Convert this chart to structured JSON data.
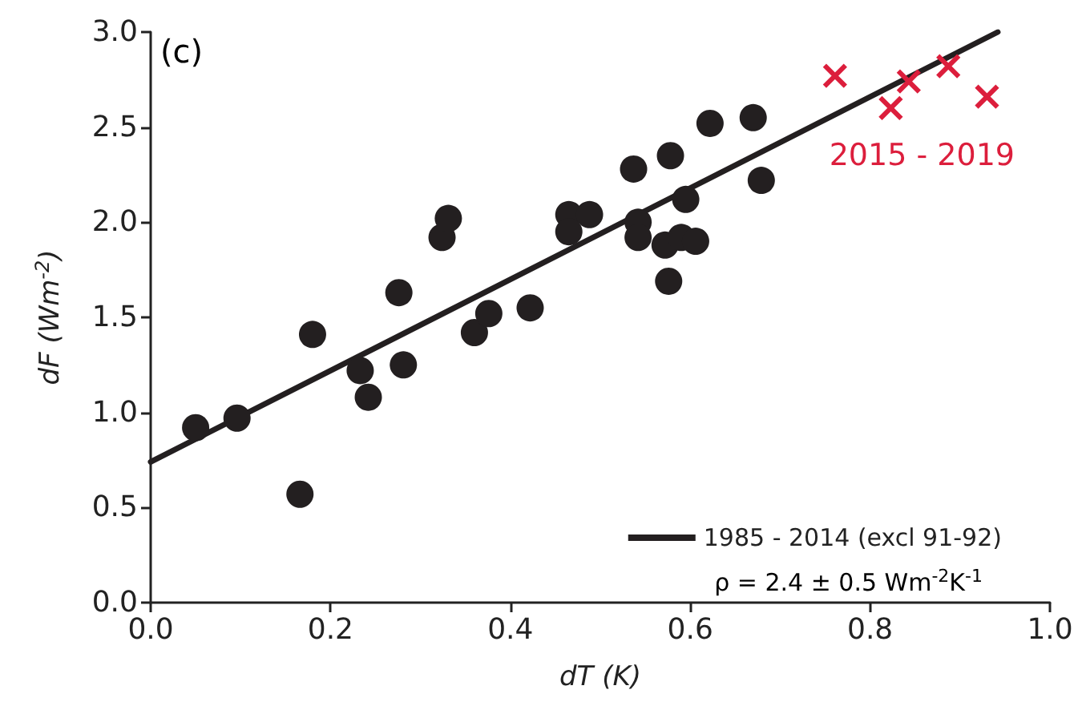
{
  "chart_data": {
    "type": "scatter",
    "xlabel": "dT (K)",
    "ylabel": "dF (Wm$^{-2}$)",
    "xlim": [
      0,
      1.0
    ],
    "xticks": [
      {
        "value": 0,
        "label": "0.0"
      },
      0.2,
      0.4,
      0.6,
      0.8,
      {
        "value": 1,
        "label": "1.0"
      }
    ],
    "ylim": [
      0,
      3.0
    ],
    "yticks": [
      {
        "value": 0,
        "label": "0.0"
      },
      0.5,
      {
        "value": 1,
        "label": "1.0"
      },
      1.5,
      {
        "value": 2,
        "label": "2.0"
      },
      2.5,
      {
        "value": 3,
        "label": "3.0"
      }
    ],
    "grid": false,
    "legend": "bottom right",
    "annotations": [
      "(c)",
      "ρ = 2.4 ± 0.5 Wm$^{-2}$K$^{-1}$"
    ],
    "series": [
      {
        "type": "scatter",
        "color": "#231f20",
        "marker": "circle",
        "x": [
          0.05,
          0.096,
          0.166,
          0.18,
          0.233,
          0.242,
          0.276,
          0.281,
          0.324,
          0.331,
          0.36,
          0.376,
          0.422,
          0.465,
          0.465,
          0.488,
          0.537,
          0.542,
          0.542,
          0.578,
          0.572,
          0.576,
          0.59,
          0.595,
          0.606,
          0.622,
          0.67,
          0.679
        ],
        "values": [
          0.92,
          0.97,
          0.57,
          1.41,
          1.22,
          1.08,
          1.63,
          1.25,
          1.92,
          2.02,
          1.42,
          1.52,
          1.55,
          2.04,
          1.95,
          2.04,
          2.28,
          2.0,
          1.92,
          2.35,
          1.88,
          1.69,
          1.92,
          2.12,
          1.9,
          2.52,
          2.55,
          2.22
        ]
      },
      {
        "type": "scatter",
        "name": "2015 - 2019",
        "color": "#dc1e3c",
        "marker": "cross",
        "x": [
          0.761,
          0.823,
          0.843,
          0.887,
          0.93
        ],
        "values": [
          2.77,
          2.6,
          2.74,
          2.82,
          2.66
        ]
      },
      {
        "type": "line",
        "name": "1985 - 2014 (excl 91-92)",
        "color": "#231f20",
        "marker": "none",
        "line_style": "solid",
        "x": [
          0,
          0.942
        ],
        "values": [
          0.74,
          3.0
        ]
      }
    ]
  }
}
